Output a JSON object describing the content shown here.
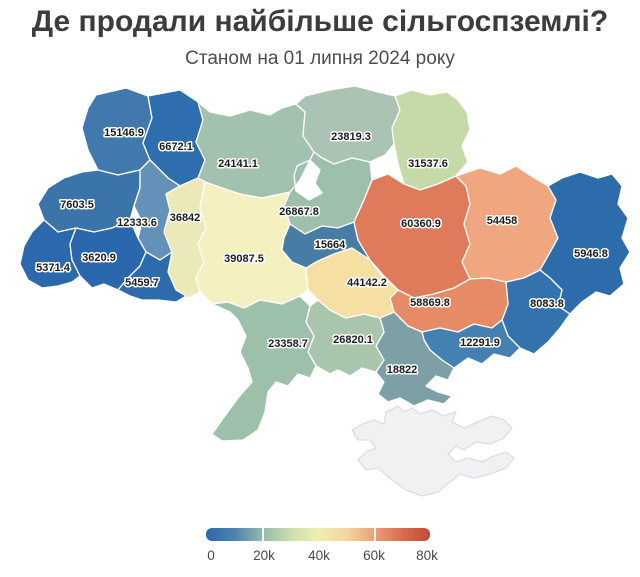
{
  "header": {
    "title": "Де продали найбільше сільгоспземлі?",
    "subtitle": "Станом на 01 липня 2024 року"
  },
  "chart_data": {
    "type": "choropleth",
    "title": "Де продали найбільше сільгоспземлі?",
    "subtitle": "Станом на 01 липня 2024 року",
    "legend": {
      "min": 0,
      "max": 80000,
      "ticks": [
        "0",
        "20k",
        "40k",
        "60k",
        "80k"
      ],
      "gradient": [
        "#2a69ab",
        "#4d84ae",
        "#94b9ac",
        "#ccdfad",
        "#f1edb2",
        "#f3d59e",
        "#eda07a",
        "#d86b4c",
        "#c44a36"
      ]
    },
    "regions": [
      {
        "id": "volyn",
        "name": "Volyn",
        "value": 15146.9,
        "label": "15146.9",
        "color": "#4179ae"
      },
      {
        "id": "rivne",
        "name": "Rivne",
        "value": 6672.1,
        "label": "6672.1",
        "color": "#2e6dae"
      },
      {
        "id": "zhytomyr",
        "name": "Zhytomyr",
        "value": 24141.1,
        "label": "24141.1",
        "color": "#a2c1ae"
      },
      {
        "id": "chernihiv",
        "name": "Chernihiv",
        "value": 23819.3,
        "label": "23819.3",
        "color": "#aac3b3"
      },
      {
        "id": "sumy",
        "name": "Sumy",
        "value": 31537.6,
        "label": "31537.6",
        "color": "#c6daa9"
      },
      {
        "id": "kyiv",
        "name": "Kyiv",
        "value": 26867.8,
        "label": "26867.8",
        "color": "#9dbfac"
      },
      {
        "id": "lviv",
        "name": "Lviv",
        "value": 7603.5,
        "label": "7603.5",
        "color": "#3a74a9"
      },
      {
        "id": "ternopil",
        "name": "Ternopil",
        "value": 12333.6,
        "label": "12333.6",
        "color": "#6391b8"
      },
      {
        "id": "khmelnytskyi",
        "name": "Khmelnytskyi",
        "value": 36842,
        "label": "36842",
        "color": "#eae9b7"
      },
      {
        "id": "vinnytsia",
        "name": "Vinnytsia",
        "value": 39087.5,
        "label": "39087.5",
        "color": "#f5f0bf"
      },
      {
        "id": "cherkasy",
        "name": "Cherkasy",
        "value": 15664,
        "label": "15664",
        "color": "#477ca4"
      },
      {
        "id": "poltava",
        "name": "Poltava",
        "value": 60360.9,
        "label": "60360.9",
        "color": "#df7a5b"
      },
      {
        "id": "kharkiv",
        "name": "Kharkiv",
        "value": 54458,
        "label": "54458",
        "color": "#f0a67e"
      },
      {
        "id": "luhansk",
        "name": "Luhansk",
        "value": 5946.8,
        "label": "5946.8",
        "color": "#2d6cab"
      },
      {
        "id": "donetsk",
        "name": "Donetsk",
        "value": 8083.8,
        "label": "8083.8",
        "color": "#3472ad"
      },
      {
        "id": "dnipro",
        "name": "Dnipropetrovsk",
        "value": 58869.8,
        "label": "58869.8",
        "color": "#e78a66"
      },
      {
        "id": "zaporizhzhia",
        "name": "Zaporizhzhia",
        "value": 12291.9,
        "label": "12291.9",
        "color": "#4480b1"
      },
      {
        "id": "kherson",
        "name": "Kherson",
        "value": 18822,
        "label": "18822",
        "color": "#7da0a6"
      },
      {
        "id": "mykolaiv",
        "name": "Mykolaiv",
        "value": 26820.1,
        "label": "26820.1",
        "color": "#a9c6ad"
      },
      {
        "id": "odesa",
        "name": "Odesa",
        "value": 23358.7,
        "label": "23358.7",
        "color": "#9dc0ab"
      },
      {
        "id": "kirovohrad",
        "name": "Kirovohrad",
        "value": 44142.2,
        "label": "44142.2",
        "color": "#f5dfa3"
      },
      {
        "id": "zakarpattia",
        "name": "Zakarpattia",
        "value": 5371.4,
        "label": "5371.4",
        "color": "#2b69ac"
      },
      {
        "id": "ivano-frankivsk",
        "name": "Ivano-Frankivsk",
        "value": 3620.9,
        "label": "3620.9",
        "color": "#2a67ac"
      },
      {
        "id": "chernivtsi",
        "name": "Chernivtsi",
        "value": 5459.7,
        "label": "5459.7",
        "color": "#2d6bad"
      },
      {
        "id": "crimea",
        "name": "Crimea",
        "value": null,
        "label": "",
        "color": "#f0f1f3",
        "stroke": "#d9dee3"
      }
    ]
  }
}
